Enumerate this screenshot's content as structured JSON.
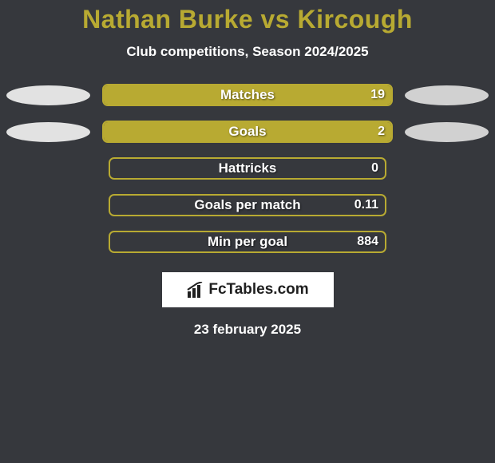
{
  "title": "Nathan Burke vs Kircough",
  "subtitle": "Club competitions, Season 2024/2025",
  "date": "23 february 2025",
  "logo_text": "FcTables.com",
  "colors": {
    "background": "#36383d",
    "accent": "#b8aa32",
    "text": "#ffffff",
    "ellipse_left": "#e2e2e2",
    "ellipse_right": "#d1d1d1",
    "logo_bg": "#ffffff",
    "logo_text": "#202020"
  },
  "stats": [
    {
      "label": "Matches",
      "value": "19",
      "fill_pct": 100,
      "show_left_ellipse": true,
      "show_right_ellipse": true
    },
    {
      "label": "Goals",
      "value": "2",
      "fill_pct": 100,
      "show_left_ellipse": true,
      "show_right_ellipse": true
    },
    {
      "label": "Hattricks",
      "value": "0",
      "fill_pct": 0,
      "show_left_ellipse": false,
      "show_right_ellipse": false
    },
    {
      "label": "Goals per match",
      "value": "0.11",
      "fill_pct": 0,
      "show_left_ellipse": false,
      "show_right_ellipse": false
    },
    {
      "label": "Min per goal",
      "value": "884",
      "fill_pct": 0,
      "show_left_ellipse": false,
      "show_right_ellipse": false
    }
  ]
}
